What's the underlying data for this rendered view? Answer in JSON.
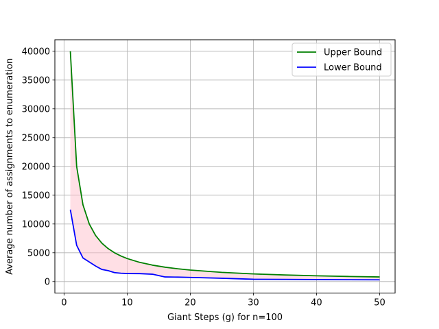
{
  "chart_data": {
    "type": "line",
    "title": "",
    "xlabel": "Giant Steps (g) for n=100",
    "ylabel": "Average number of assignments to enumeration",
    "xlim": [
      -1.45,
      52.45
    ],
    "ylim": [
      -2000,
      42000
    ],
    "xticks": [
      0,
      10,
      20,
      30,
      40,
      50
    ],
    "yticks": [
      0,
      5000,
      10000,
      15000,
      20000,
      25000,
      30000,
      35000,
      40000
    ],
    "grid": true,
    "legend_position": "upper right",
    "fill_between": {
      "upper_series": "Upper Bound",
      "lower_series": "Lower Bound",
      "color": "#ffc0cb",
      "opacity": 0.5
    },
    "series": [
      {
        "name": "Upper Bound",
        "color": "#008000",
        "x": [
          1,
          2,
          3,
          4,
          5,
          6,
          7,
          8,
          9,
          10,
          12,
          14,
          16,
          18,
          20,
          25,
          30,
          35,
          40,
          45,
          50
        ],
        "y": [
          40000,
          20000,
          13333,
          10000,
          8000,
          6667,
          5714,
          5000,
          4444,
          4000,
          3333,
          2857,
          2500,
          2222,
          2000,
          1600,
          1333,
          1143,
          1000,
          889,
          800
        ]
      },
      {
        "name": "Lower Bound",
        "color": "#0000ff",
        "x": [
          1,
          2,
          3,
          4,
          5,
          6,
          7,
          8,
          9,
          10,
          12,
          14,
          16,
          18,
          20,
          25,
          30,
          35,
          40,
          45,
          50
        ],
        "y": [
          12500,
          6300,
          4100,
          3400,
          2700,
          2100,
          1900,
          1550,
          1450,
          1400,
          1380,
          1280,
          800,
          770,
          720,
          580,
          400,
          380,
          350,
          320,
          300
        ]
      }
    ]
  }
}
